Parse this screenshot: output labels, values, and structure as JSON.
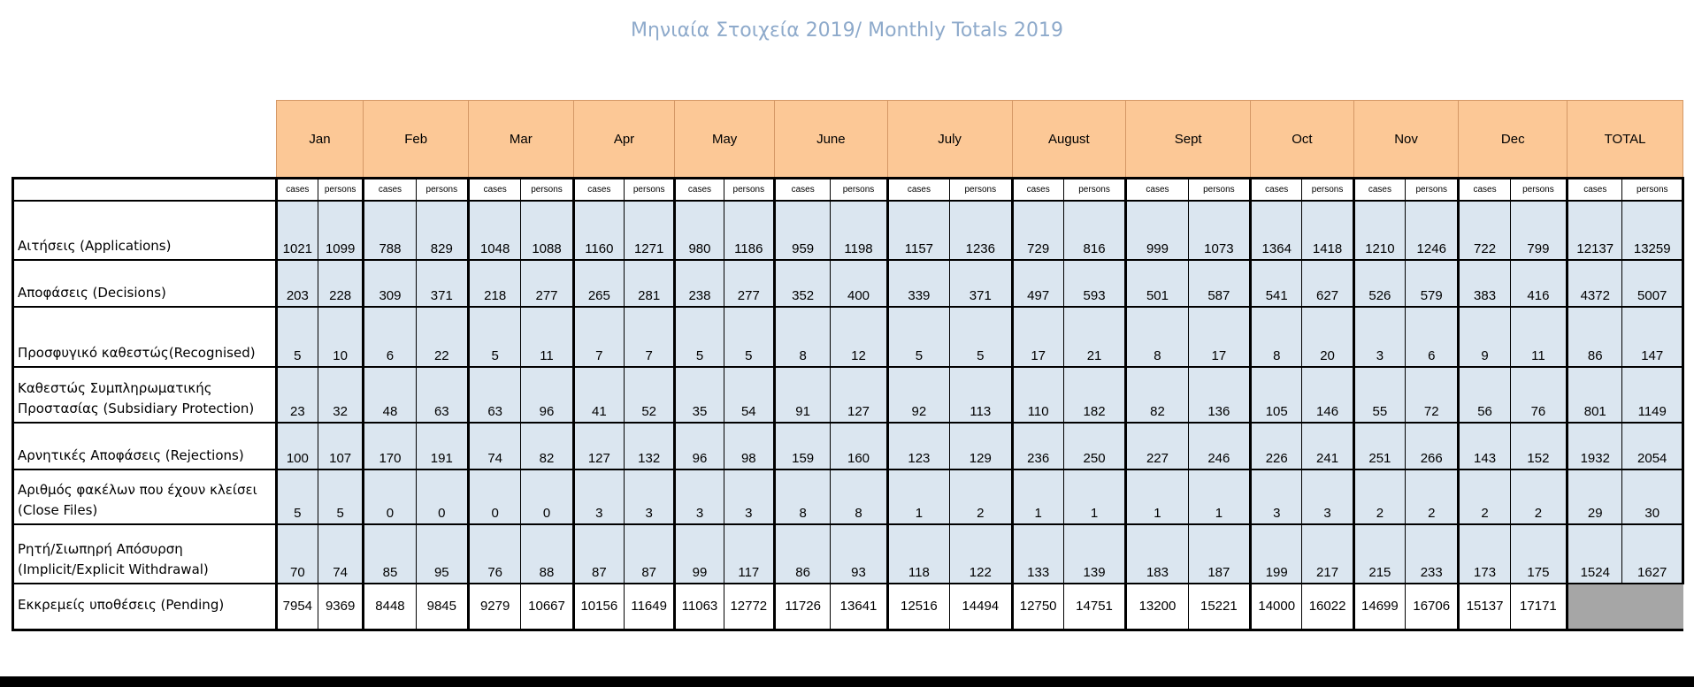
{
  "title": "Μηνιαία Στοιχεία 2019/ Monthly Totals 2019",
  "months": [
    "Jan",
    "Feb",
    "Mar",
    "Apr",
    "May",
    "June",
    "July",
    "August",
    "Sept",
    "Oct",
    "Nov",
    "Dec",
    "TOTAL"
  ],
  "subheaders": [
    "cases",
    "persons"
  ],
  "rows": [
    {
      "label": "Αιτήσεις (Applications)",
      "values": [
        "1021",
        "1099",
        "788",
        "829",
        "1048",
        "1088",
        "1160",
        "1271",
        "980",
        "1186",
        "959",
        "1198",
        "1157",
        "1236",
        "729",
        "816",
        "999",
        "1073",
        "1364",
        "1418",
        "1210",
        "1246",
        "722",
        "799",
        "12137",
        "13259"
      ]
    },
    {
      "label": "Αποφάσεις (Decisions)",
      "values": [
        "203",
        "228",
        "309",
        "371",
        "218",
        "277",
        "265",
        "281",
        "238",
        "277",
        "352",
        "400",
        "339",
        "371",
        "497",
        "593",
        "501",
        "587",
        "541",
        "627",
        "526",
        "579",
        "383",
        "416",
        "4372",
        "5007"
      ]
    },
    {
      "label": "Προσφυγικό καθεστώς(Recognised)",
      "values": [
        "5",
        "10",
        "6",
        "22",
        "5",
        "11",
        "7",
        "7",
        "5",
        "5",
        "8",
        "12",
        "5",
        "5",
        "17",
        "21",
        "8",
        "17",
        "8",
        "20",
        "3",
        "6",
        "9",
        "11",
        "86",
        "147"
      ]
    },
    {
      "label": "Καθεστώς Συμπληρωματικής Προστασίας (Subsidiary Protection)",
      "values": [
        "23",
        "32",
        "48",
        "63",
        "63",
        "96",
        "41",
        "52",
        "35",
        "54",
        "91",
        "127",
        "92",
        "113",
        "110",
        "182",
        "82",
        "136",
        "105",
        "146",
        "55",
        "72",
        "56",
        "76",
        "801",
        "1149"
      ]
    },
    {
      "label": "Αρνητικές Αποφάσεις (Rejections)",
      "values": [
        "100",
        "107",
        "170",
        "191",
        "74",
        "82",
        "127",
        "132",
        "96",
        "98",
        "159",
        "160",
        "123",
        "129",
        "236",
        "250",
        "227",
        "246",
        "226",
        "241",
        "251",
        "266",
        "143",
        "152",
        "1932",
        "2054"
      ]
    },
    {
      "label": "Αριθμός φακέλων που έχουν κλείσει (Close Files)",
      "values": [
        "5",
        "5",
        "0",
        "0",
        "0",
        "0",
        "3",
        "3",
        "3",
        "3",
        "8",
        "8",
        "1",
        "2",
        "1",
        "1",
        "1",
        "1",
        "3",
        "3",
        "2",
        "2",
        "2",
        "2",
        "29",
        "30"
      ]
    },
    {
      "label": "Ρητή/Σιωπηρή Απόσυρση (Implicit/Explicit Withdrawal)",
      "values": [
        "70",
        "74",
        "85",
        "95",
        "76",
        "88",
        "87",
        "87",
        "99",
        "117",
        "86",
        "93",
        "118",
        "122",
        "133",
        "139",
        "183",
        "187",
        "199",
        "217",
        "215",
        "233",
        "173",
        "175",
        "1524",
        "1627"
      ]
    },
    {
      "label": "Εκκρεμείς υποθέσεις (Pending)",
      "values": [
        "7954",
        "9369",
        "8448",
        "9845",
        "9279",
        "10667",
        "10156",
        "11649",
        "11063",
        "12772",
        "11726",
        "13641",
        "12516",
        "14494",
        "12750",
        "14751",
        "13200",
        "15221",
        "14000",
        "16022",
        "14699",
        "16706",
        "15137",
        "17171",
        "",
        ""
      ]
    }
  ],
  "colors": {
    "title": "#8eaacb",
    "month_header": "#fcc896",
    "data_cell": "#dbe6f0",
    "pending_total": "#a6a6a6"
  }
}
